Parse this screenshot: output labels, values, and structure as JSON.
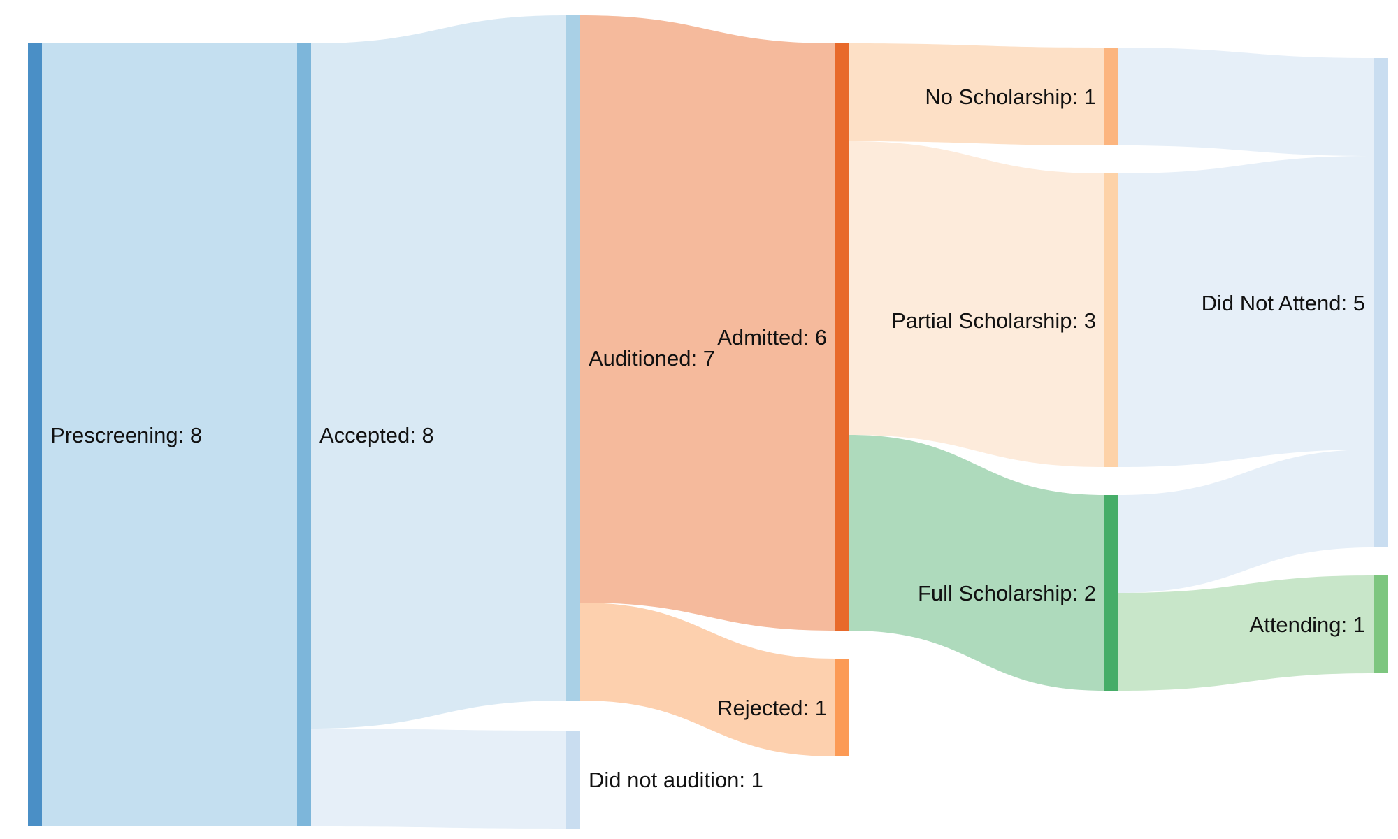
{
  "chart_data": {
    "type": "sankey",
    "nodes": [
      {
        "id": "prescreening",
        "label": "Prescreening: 8",
        "value": 8,
        "color": "#4a8fc6"
      },
      {
        "id": "accepted",
        "label": "Accepted: 8",
        "value": 8,
        "color": "#7db6da"
      },
      {
        "id": "auditioned",
        "label": "Auditioned: 7",
        "value": 7,
        "color": "#a9d0e6"
      },
      {
        "id": "did_not_audition",
        "label": "Did not audition: 1",
        "value": 1,
        "color": "#c9ddf0"
      },
      {
        "id": "admitted",
        "label": "Admitted: 6",
        "value": 6,
        "color": "#e8692a"
      },
      {
        "id": "rejected",
        "label": "Rejected: 1",
        "value": 1,
        "color": "#fc9a55"
      },
      {
        "id": "no_scholarship",
        "label": "No Scholarship: 1",
        "value": 1,
        "color": "#fcb57f"
      },
      {
        "id": "partial_scholarship",
        "label": "Partial Scholarship: 3",
        "value": 3,
        "color": "#fdd2a8"
      },
      {
        "id": "full_scholarship",
        "label": "Full Scholarship: 2",
        "value": 2,
        "color": "#46ad68"
      },
      {
        "id": "did_not_attend",
        "label": "Did Not Attend: 5",
        "value": 5,
        "color": "#c9ddf0"
      },
      {
        "id": "attending",
        "label": "Attending: 1",
        "value": 1,
        "color": "#7dc67f"
      }
    ],
    "links": [
      {
        "source": "prescreening",
        "target": "accepted",
        "value": 8,
        "color": "#c4dff0"
      },
      {
        "source": "accepted",
        "target": "auditioned",
        "value": 7,
        "color": "#d9e9f4"
      },
      {
        "source": "accepted",
        "target": "did_not_audition",
        "value": 1,
        "color": "#e6eff8"
      },
      {
        "source": "auditioned",
        "target": "admitted",
        "value": 6,
        "color": "#f5ba9c"
      },
      {
        "source": "auditioned",
        "target": "rejected",
        "value": 1,
        "color": "#fdd0ae"
      },
      {
        "source": "admitted",
        "target": "no_scholarship",
        "value": 1,
        "color": "#fde0c6"
      },
      {
        "source": "admitted",
        "target": "partial_scholarship",
        "value": 3,
        "color": "#fdebdb"
      },
      {
        "source": "admitted",
        "target": "full_scholarship",
        "value": 2,
        "color": "#aedabc"
      },
      {
        "source": "no_scholarship",
        "target": "did_not_attend",
        "value": 1,
        "color": "#e6eff8"
      },
      {
        "source": "partial_scholarship",
        "target": "did_not_attend",
        "value": 3,
        "color": "#e6eff8"
      },
      {
        "source": "full_scholarship",
        "target": "did_not_attend",
        "value": 1,
        "color": "#e6eff8"
      },
      {
        "source": "full_scholarship",
        "target": "attending",
        "value": 1,
        "color": "#c8e6c9"
      }
    ]
  }
}
